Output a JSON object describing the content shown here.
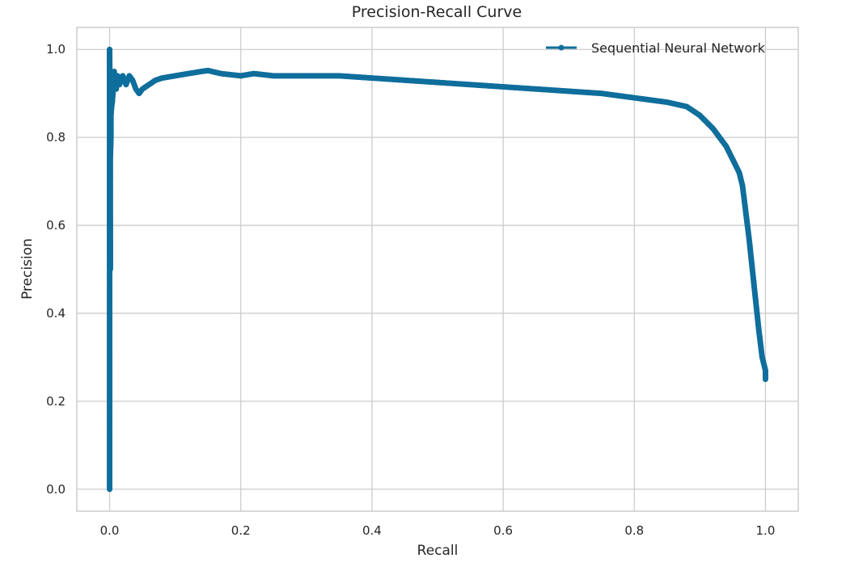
{
  "chart_data": {
    "type": "line",
    "title": "Precision-Recall Curve",
    "xlabel": "Recall",
    "ylabel": "Precision",
    "xlim": [
      -0.05,
      1.05
    ],
    "ylim": [
      -0.05,
      1.05
    ],
    "grid": true,
    "legend_position": "top-right",
    "x_ticks": [
      "0.0",
      "0.2",
      "0.4",
      "0.6",
      "0.8",
      "1.0"
    ],
    "y_ticks": [
      "0.0",
      "0.2",
      "0.4",
      "0.6",
      "0.8",
      "1.0"
    ],
    "series": [
      {
        "name": "Sequential Neural Network",
        "color": "#0f6e9c",
        "marker": "circle",
        "x": [
          0.0,
          0.0,
          0.001,
          0.001,
          0.001,
          0.002,
          0.002,
          0.003,
          0.004,
          0.005,
          0.006,
          0.007,
          0.008,
          0.01,
          0.012,
          0.015,
          0.018,
          0.02,
          0.025,
          0.03,
          0.035,
          0.04,
          0.045,
          0.05,
          0.06,
          0.07,
          0.08,
          0.1,
          0.12,
          0.14,
          0.15,
          0.17,
          0.2,
          0.22,
          0.25,
          0.3,
          0.35,
          0.4,
          0.45,
          0.5,
          0.55,
          0.6,
          0.65,
          0.7,
          0.75,
          0.8,
          0.85,
          0.88,
          0.9,
          0.92,
          0.93,
          0.94,
          0.95,
          0.96,
          0.965,
          0.97,
          0.975,
          0.98,
          0.985,
          0.99,
          0.995,
          1.0,
          1.0
        ],
        "y": [
          0.0,
          1.0,
          0.5,
          0.67,
          0.75,
          0.8,
          0.85,
          0.87,
          0.88,
          0.9,
          0.93,
          0.95,
          0.92,
          0.91,
          0.94,
          0.92,
          0.93,
          0.94,
          0.92,
          0.94,
          0.93,
          0.91,
          0.9,
          0.91,
          0.92,
          0.93,
          0.935,
          0.94,
          0.945,
          0.95,
          0.952,
          0.945,
          0.94,
          0.945,
          0.94,
          0.94,
          0.94,
          0.935,
          0.93,
          0.925,
          0.92,
          0.915,
          0.91,
          0.905,
          0.9,
          0.89,
          0.88,
          0.87,
          0.85,
          0.82,
          0.8,
          0.78,
          0.75,
          0.72,
          0.69,
          0.63,
          0.57,
          0.5,
          0.43,
          0.36,
          0.3,
          0.27,
          0.25
        ]
      }
    ]
  }
}
